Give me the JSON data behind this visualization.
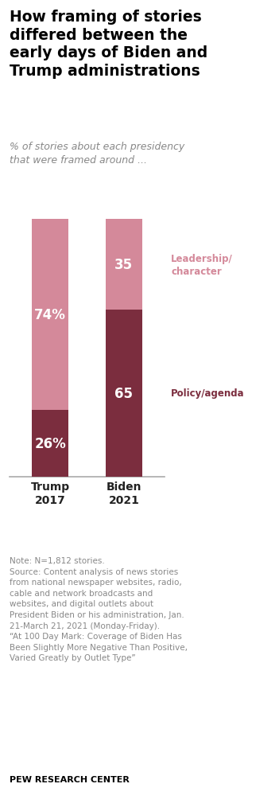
{
  "title": "How framing of stories\ndiffered between the\nearly days of Biden and\nTrump administrations",
  "subtitle": "% of stories about each presidency\nthat were framed around ...",
  "categories": [
    "Trump\n2017",
    "Biden\n2021"
  ],
  "policy_values": [
    26,
    65
  ],
  "leadership_values": [
    74,
    35
  ],
  "policy_labels": [
    "26%",
    "65"
  ],
  "leadership_labels": [
    "74%",
    "35"
  ],
  "policy_color": "#7B2D3E",
  "leadership_color": "#D4899A",
  "legend_leadership": "Leadership/\ncharacter",
  "legend_policy": "Policy/agenda",
  "note_text": "Note: N=1,812 stories.\nSource: Content analysis of news stories\nfrom national newspaper websites, radio,\ncable and network broadcasts and\nwebsites, and digital outlets about\nPresident Biden or his administration, Jan.\n21-March 21, 2021 (Monday-Friday).\n“At 100 Day Mark: Coverage of Biden Has\nBeen Slightly More Negative Than Positive,\nVaried Greatly by Outlet Type”",
  "footer": "PEW RESEARCH CENTER",
  "background_color": "#FFFFFF",
  "title_color": "#000000",
  "subtitle_color": "#888888",
  "note_color": "#888888",
  "footer_color": "#000000"
}
